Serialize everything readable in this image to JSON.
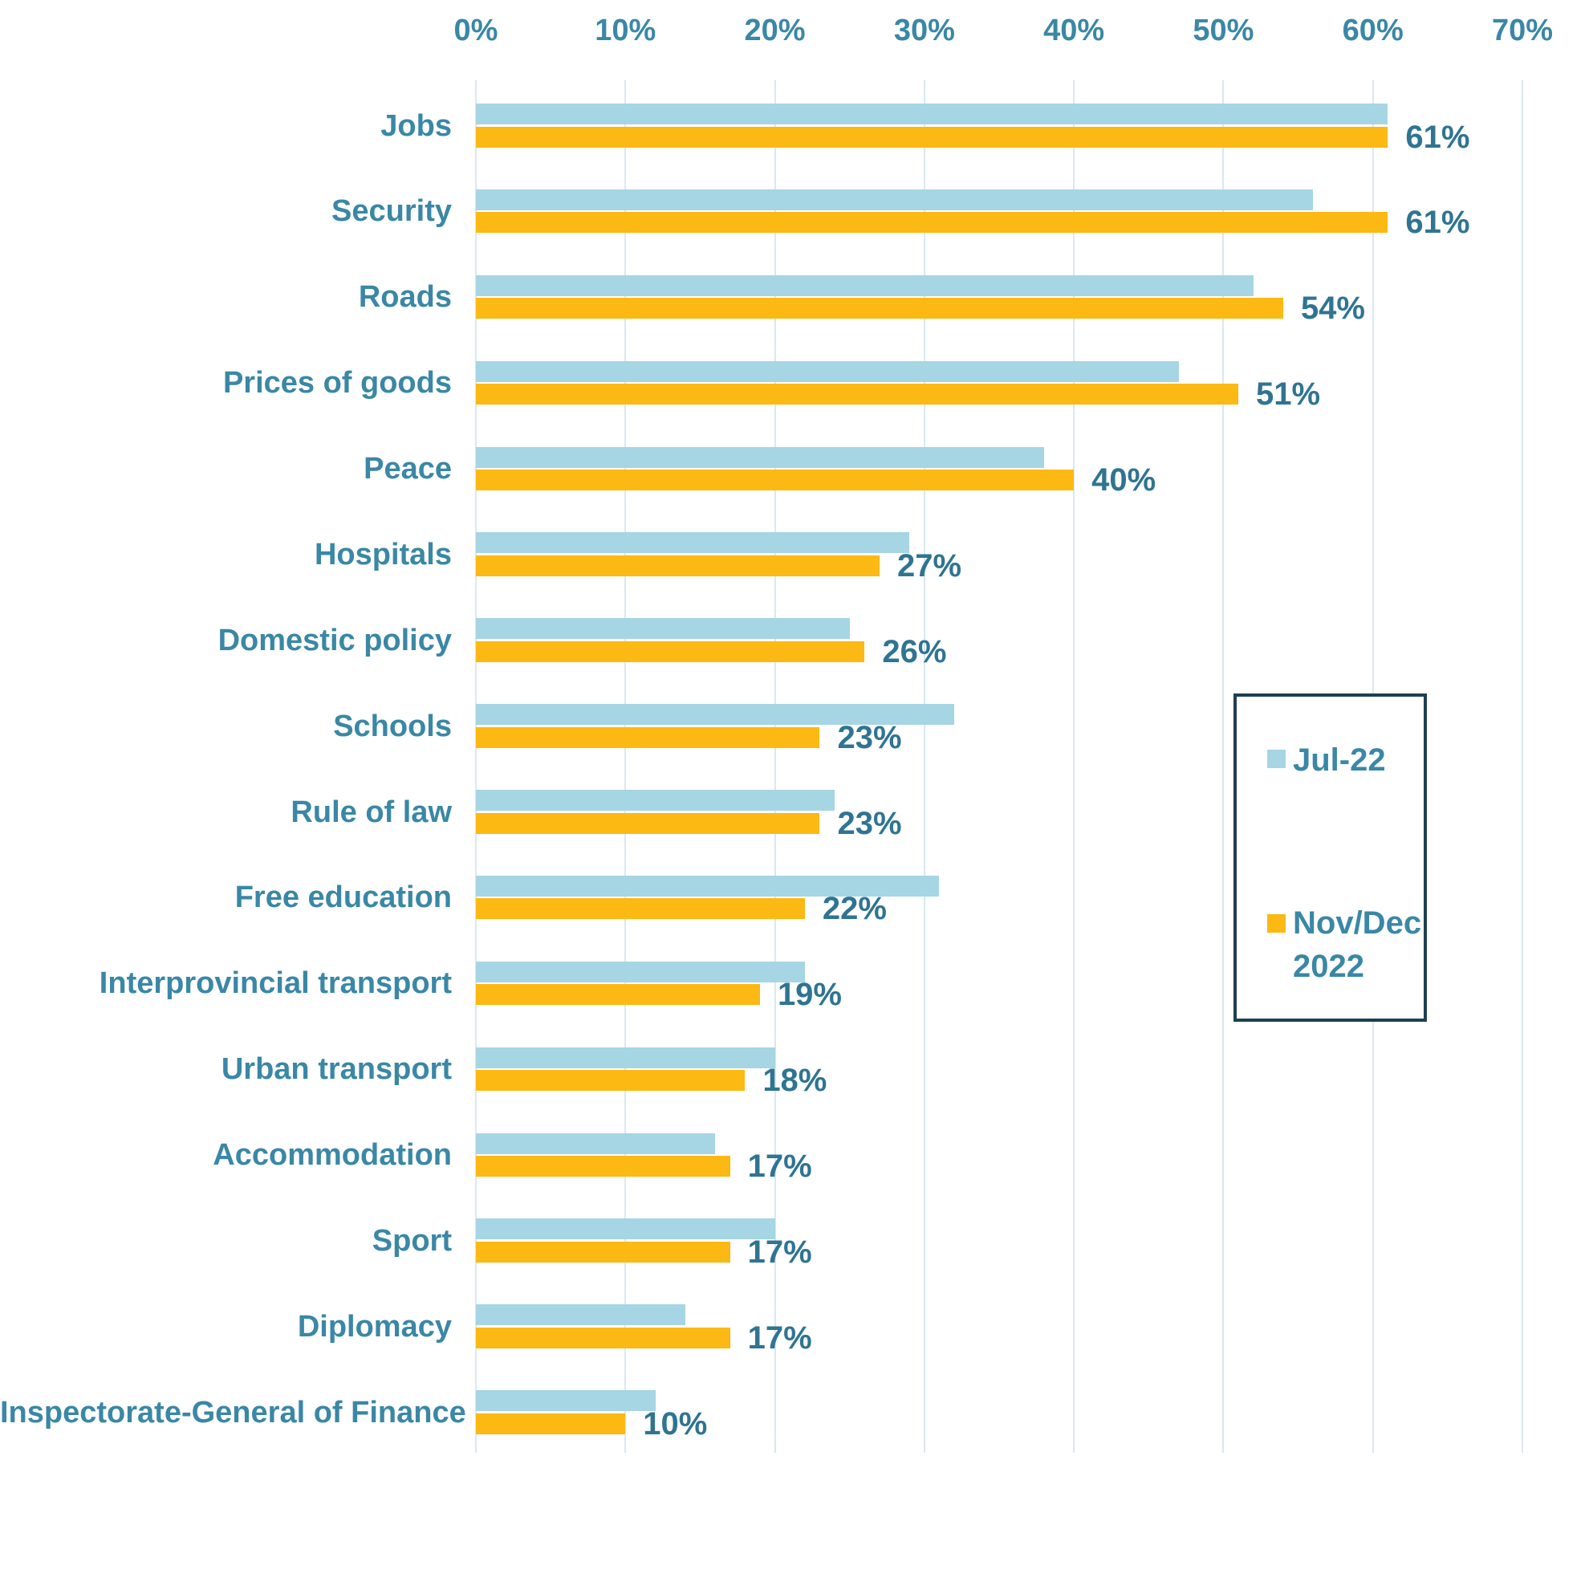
{
  "chart_data": {
    "type": "bar",
    "orientation": "horizontal",
    "title": "",
    "xlabel": "",
    "ylabel": "",
    "xlim": [
      0,
      70
    ],
    "grid": true,
    "x_ticks": [
      "0%",
      "10%",
      "20%",
      "30%",
      "40%",
      "50%",
      "60%",
      "70%"
    ],
    "x_tick_values": [
      0,
      10,
      20,
      30,
      40,
      50,
      60,
      70
    ],
    "categories": [
      "Jobs",
      "Security",
      "Roads",
      "Prices of goods",
      "Peace",
      "Hospitals",
      "Domestic policy",
      "Schools",
      "Rule of law",
      "Free education",
      "Interprovincial transport",
      "Urban transport",
      "Accommodation",
      "Sport",
      "Diplomacy",
      "Inspectorate-General of Finance"
    ],
    "series": [
      {
        "name": "Jul-22",
        "color": "#a6d5e4",
        "values": [
          61,
          56,
          52,
          47,
          38,
          29,
          25,
          32,
          24,
          31,
          22,
          20,
          16,
          20,
          14,
          12
        ]
      },
      {
        "name": "Nov/Dec 2022",
        "color": "#fcb813",
        "values": [
          61,
          61,
          54,
          51,
          40,
          27,
          26,
          23,
          23,
          22,
          19,
          18,
          17,
          17,
          17,
          10
        ]
      }
    ],
    "data_labels": [
      "61%",
      "61%",
      "54%",
      "51%",
      "40%",
      "27%",
      "26%",
      "23%",
      "23%",
      "22%",
      "19%",
      "18%",
      "17%",
      "17%",
      "17%",
      "10%"
    ],
    "data_labels_series": "Nov/Dec 2022",
    "legend": {
      "position": "middle-right",
      "entries": [
        {
          "label": "Jul-22",
          "color": "#a6d5e4"
        },
        {
          "label": "Nov/Dec 2022",
          "color": "#fcb813"
        }
      ]
    },
    "colors": {
      "text": "#3a87a6",
      "data_label_text": "#2f7492",
      "gridline": "#d9e8f1",
      "legend_border": "#1e4050",
      "background": "#ffffff"
    }
  }
}
